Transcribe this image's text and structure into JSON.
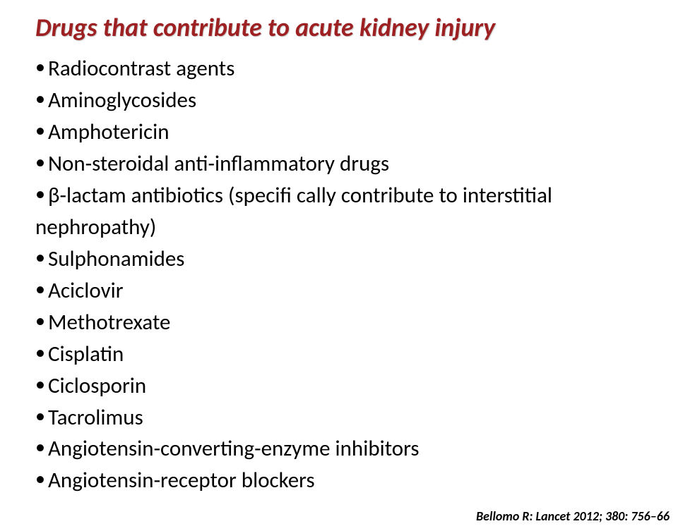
{
  "title": "Drugs that contribute to acute kidney injury",
  "items": [
    "Radiocontrast agents",
    "Aminoglycosides",
    "Amphotericin",
    "Non-steroidal anti-inflammatory drugs",
    "β-lactam antibiotics (specifi cally contribute to interstitial"
  ],
  "continuation": "nephropathy)",
  "items2": [
    "Sulphonamides",
    "Aciclovir",
    "Methotrexate",
    "Cisplatin",
    "Ciclosporin",
    "Tacrolimus",
    "Angiotensin-converting-enzyme inhibitors",
    "Angiotensin-receptor blockers"
  ],
  "citation": "Bellomo R: Lancet 2012; 380: 756–66",
  "colors": {
    "title": "#9d2022",
    "text": "#000000",
    "background": "#ffffff"
  }
}
